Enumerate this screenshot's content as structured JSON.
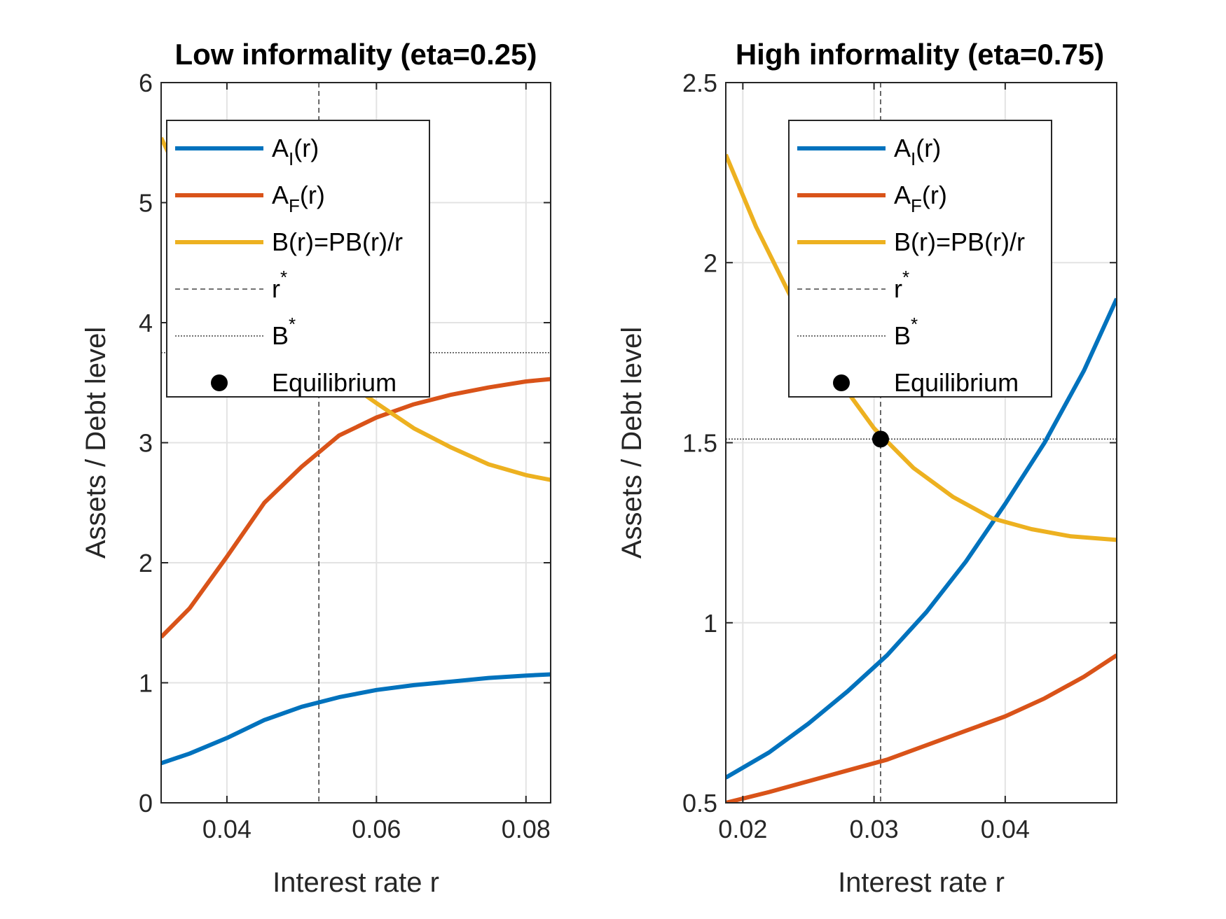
{
  "chart_data": [
    {
      "type": "line",
      "title": "Low informality (eta=0.25)",
      "xlabel": "Interest rate r",
      "ylabel": "Assets / Debt level",
      "xlim": [
        0.0312,
        0.0833
      ],
      "ylim": [
        0,
        6
      ],
      "xticks": [
        0.04,
        0.06,
        0.08
      ],
      "xtick_labels": [
        "0.04",
        "0.06",
        "0.08"
      ],
      "yticks": [
        0,
        1,
        2,
        3,
        4,
        5,
        6
      ],
      "ytick_labels": [
        "0",
        "1",
        "2",
        "3",
        "4",
        "5",
        "6"
      ],
      "grid": true,
      "legend_position": "top-left",
      "series": [
        {
          "name": "A_I(r)",
          "legend_main": "A",
          "legend_sub": "I",
          "legend_rest": "(r)",
          "color": "#0072BD",
          "style": "solid",
          "x": [
            0.0312,
            0.035,
            0.04,
            0.045,
            0.05,
            0.055,
            0.06,
            0.065,
            0.07,
            0.075,
            0.08,
            0.0833
          ],
          "y": [
            0.33,
            0.41,
            0.54,
            0.69,
            0.8,
            0.88,
            0.94,
            0.98,
            1.01,
            1.04,
            1.06,
            1.07
          ]
        },
        {
          "name": "A_F(r)",
          "legend_main": "A",
          "legend_sub": "F",
          "legend_rest": "(r)",
          "color": "#D95319",
          "style": "solid",
          "x": [
            0.0312,
            0.035,
            0.04,
            0.045,
            0.05,
            0.055,
            0.06,
            0.065,
            0.07,
            0.075,
            0.08,
            0.0833
          ],
          "y": [
            1.38,
            1.62,
            2.05,
            2.5,
            2.8,
            3.06,
            3.21,
            3.32,
            3.4,
            3.46,
            3.51,
            3.53
          ]
        },
        {
          "name": "B(r)=PB(r)/r",
          "legend_main": "B(r)=PB(r)/r",
          "legend_sub": "",
          "legend_rest": "",
          "color": "#EDB120",
          "style": "solid",
          "x": [
            0.0312,
            0.035,
            0.04,
            0.045,
            0.05,
            0.055,
            0.06,
            0.065,
            0.07,
            0.075,
            0.08,
            0.0833
          ],
          "y": [
            5.54,
            5.05,
            4.6,
            4.18,
            3.82,
            3.55,
            3.33,
            3.12,
            2.96,
            2.82,
            2.73,
            2.69
          ]
        }
      ],
      "r_star": 0.0523,
      "B_star": 3.75,
      "equilibrium": {
        "x": 0.0523,
        "y": 3.75,
        "visible": false
      },
      "legend": [
        {
          "main": "A",
          "sub": "I",
          "rest": "(r)",
          "sup": "",
          "kind": "line",
          "color": "#0072BD"
        },
        {
          "main": "A",
          "sub": "F",
          "rest": "(r)",
          "sup": "",
          "kind": "line",
          "color": "#D95319"
        },
        {
          "main": "B(r)=PB(r)/r",
          "sub": "",
          "rest": "",
          "sup": "",
          "kind": "line",
          "color": "#EDB120"
        },
        {
          "main": "r",
          "sub": "",
          "rest": "",
          "sup": "*",
          "kind": "dashed",
          "color": "#444444"
        },
        {
          "main": "B",
          "sub": "",
          "rest": "",
          "sup": "*",
          "kind": "dotted",
          "color": "#444444"
        },
        {
          "main": "Equilibrium",
          "sub": "",
          "rest": "",
          "sup": "",
          "kind": "marker",
          "color": "#000000"
        }
      ]
    },
    {
      "type": "line",
      "title": "High informality (eta=0.75)",
      "xlabel": "Interest rate r",
      "ylabel": "Assets / Debt level",
      "xlim": [
        0.0187,
        0.0485
      ],
      "ylim": [
        0.5,
        2.5
      ],
      "xticks": [
        0.02,
        0.03,
        0.04
      ],
      "xtick_labels": [
        "0.02",
        "0.03",
        "0.04"
      ],
      "yticks": [
        0.5,
        1,
        1.5,
        2,
        2.5
      ],
      "ytick_labels": [
        "0.5",
        "1",
        "1.5",
        "2",
        "2.5"
      ],
      "grid": true,
      "legend_position": "top-right",
      "series": [
        {
          "name": "A_I(r)",
          "legend_main": "A",
          "legend_sub": "I",
          "legend_rest": "(r)",
          "color": "#0072BD",
          "style": "solid",
          "x": [
            0.0187,
            0.022,
            0.025,
            0.028,
            0.031,
            0.034,
            0.037,
            0.04,
            0.043,
            0.046,
            0.0485
          ],
          "y": [
            0.57,
            0.64,
            0.72,
            0.81,
            0.91,
            1.03,
            1.17,
            1.33,
            1.5,
            1.7,
            1.9
          ]
        },
        {
          "name": "A_F(r)",
          "legend_main": "A",
          "legend_sub": "F",
          "legend_rest": "(r)",
          "color": "#D95319",
          "style": "solid",
          "x": [
            0.0187,
            0.022,
            0.025,
            0.028,
            0.031,
            0.034,
            0.037,
            0.04,
            0.043,
            0.046,
            0.0485
          ],
          "y": [
            0.5,
            0.53,
            0.56,
            0.59,
            0.62,
            0.66,
            0.7,
            0.74,
            0.79,
            0.85,
            0.91
          ]
        },
        {
          "name": "B(r)=PB(r)/r",
          "legend_main": "B(r)=PB(r)/r",
          "legend_sub": "",
          "legend_rest": "",
          "color": "#EDB120",
          "style": "solid",
          "x": [
            0.0187,
            0.021,
            0.024,
            0.027,
            0.03,
            0.033,
            0.036,
            0.039,
            0.042,
            0.045,
            0.0485
          ],
          "y": [
            2.3,
            2.1,
            1.88,
            1.69,
            1.54,
            1.43,
            1.35,
            1.29,
            1.26,
            1.24,
            1.23
          ]
        }
      ],
      "r_star": 0.0305,
      "B_star": 1.51,
      "equilibrium": {
        "x": 0.0305,
        "y": 1.51,
        "visible": true
      },
      "legend": [
        {
          "main": "A",
          "sub": "I",
          "rest": "(r)",
          "sup": "",
          "kind": "line",
          "color": "#0072BD"
        },
        {
          "main": "A",
          "sub": "F",
          "rest": "(r)",
          "sup": "",
          "kind": "line",
          "color": "#D95319"
        },
        {
          "main": "B(r)=PB(r)/r",
          "sub": "",
          "rest": "",
          "sup": "",
          "kind": "line",
          "color": "#EDB120"
        },
        {
          "main": "r",
          "sub": "",
          "rest": "",
          "sup": "*",
          "kind": "dashed",
          "color": "#444444"
        },
        {
          "main": "B",
          "sub": "",
          "rest": "",
          "sup": "*",
          "kind": "dotted",
          "color": "#444444"
        },
        {
          "main": "Equilibrium",
          "sub": "",
          "rest": "",
          "sup": "",
          "kind": "marker",
          "color": "#000000"
        }
      ]
    }
  ]
}
